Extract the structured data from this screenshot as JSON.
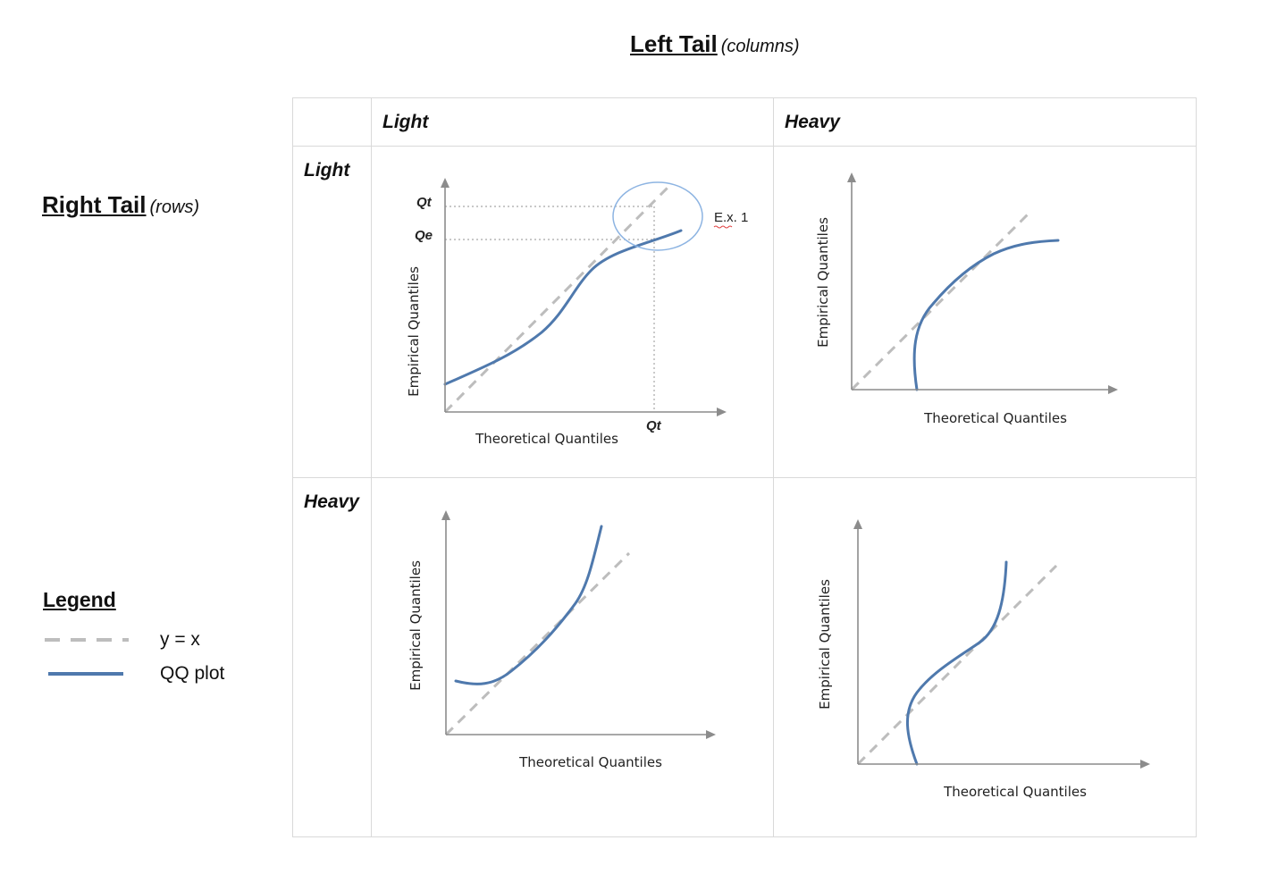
{
  "col_heading": {
    "main": "Left Tail",
    "sub": "(columns)"
  },
  "row_heading": {
    "main": "Right Tail",
    "sub": "(rows)"
  },
  "columns": [
    "Light",
    "Heavy"
  ],
  "rows": [
    "Light",
    "Heavy"
  ],
  "axis_labels": {
    "x": "Theoretical Quantiles",
    "y": "Empirical Quantiles"
  },
  "annotations": {
    "qt_y": "Qt",
    "qe_y": "Qe",
    "qt_x": "Qt",
    "example": "E.x. 1"
  },
  "legend": {
    "title": "Legend",
    "items": [
      {
        "label": "y = x",
        "style": "dashed",
        "color": "#bdbdbd"
      },
      {
        "label": "QQ plot",
        "style": "solid",
        "color": "#4f79ad"
      }
    ]
  },
  "colors": {
    "qq_line": "#4f79ad",
    "reference_line": "#bdbdbd",
    "axis": "#8c8c8c",
    "highlight_circle": "#8db4e2",
    "grid_border": "#d9d9d9"
  }
}
